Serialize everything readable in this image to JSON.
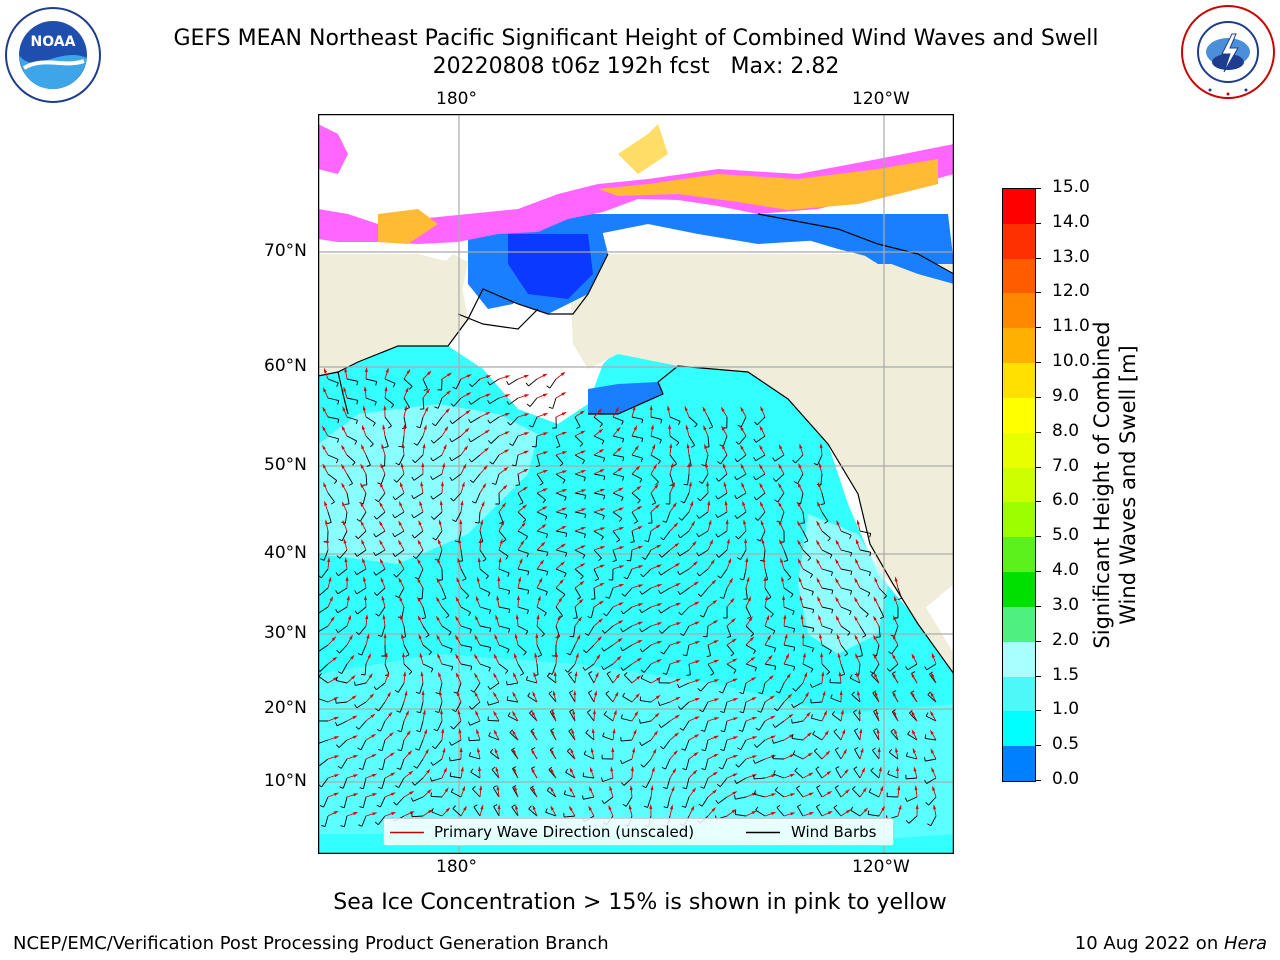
{
  "title": {
    "line1": "GEFS MEAN Northeast Pacific Significant Height of Combined Wind Waves and Swell",
    "line2": "20220808 t06z 192h fcst   Max: 2.82"
  },
  "map": {
    "lon_top_labels": [
      "180°",
      "120°W"
    ],
    "lon_bottom_labels": [
      "180°",
      "120°W"
    ],
    "lat_labels": [
      "70°N",
      "60°N",
      "50°N",
      "40°N",
      "30°N",
      "20°N",
      "10°N"
    ],
    "ocean_color": "#33ffff",
    "land_color": "#f0eeda",
    "ice_colors": [
      "#ff33ff",
      "#ffbb33",
      "#ffdd66"
    ]
  },
  "colorbar": {
    "title_line1": "Significant Height of Combined",
    "title_line2": "Wind Waves and Swell [m]",
    "labels": [
      "15.0",
      "14.0",
      "13.0",
      "12.0",
      "11.0",
      "10.0",
      "9.0",
      "8.0",
      "7.0",
      "6.0",
      "5.0",
      "4.0",
      "3.0",
      "2.0",
      "1.5",
      "1.0",
      "0.5",
      "0.0"
    ],
    "colors": [
      "#ff0000",
      "#ff3000",
      "#ff5c00",
      "#ff8800",
      "#ffb000",
      "#ffe000",
      "#ffff00",
      "#e8ff00",
      "#ccff00",
      "#9cff00",
      "#5cf01c",
      "#00e000",
      "#50f080",
      "#a8ffff",
      "#4cf8f8",
      "#00ffff",
      "#0080ff",
      "#0000ff"
    ]
  },
  "legend": {
    "wave_label": "Primary Wave Direction (unscaled)",
    "wave_color": "#cc0000",
    "wind_label": "Wind Barbs",
    "wind_color": "#000000"
  },
  "footer": {
    "note": "Sea Ice Concentration > 15% is shown in pink to yellow",
    "credit": "NCEP/EMC/Verification Post Processing Product Generation Branch",
    "date_text": "10 Aug 2022 on ",
    "date_host": "Hera"
  },
  "logos": {
    "noaa_text": "NOAA",
    "noaa_ring": "NATIONAL OCEANIC AND ATMOSPHERIC ADMINISTRATION · U.S. DEPARTMENT OF COMMERCE",
    "nws_ring": "NATIONAL WEATHER SERVICE"
  }
}
